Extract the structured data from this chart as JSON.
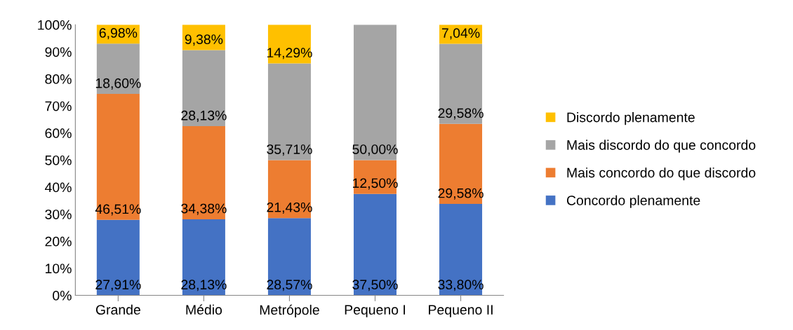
{
  "chart_data": {
    "type": "bar",
    "stacked": true,
    "categories": [
      "Grande",
      "Médio",
      "Metrópole",
      "Pequeno I",
      "Pequeno II"
    ],
    "series": [
      {
        "name": "Concordo plenamente",
        "color": "#4472c4",
        "values": [
          27.91,
          28.13,
          28.57,
          37.5,
          33.8
        ],
        "value_labels": [
          "27,91%",
          "28,13%",
          "28,57%",
          "37,50%",
          "33,80%"
        ]
      },
      {
        "name": "Mais concordo do que discordo",
        "color": "#ed7d31",
        "values": [
          46.51,
          34.38,
          21.43,
          12.5,
          29.58
        ],
        "value_labels": [
          "46,51%",
          "34,38%",
          "21,43%",
          "12,50%",
          "29,58%"
        ]
      },
      {
        "name": "Mais discordo do que concordo",
        "color": "#a5a5a5",
        "values": [
          18.6,
          28.13,
          35.71,
          50.0,
          29.58
        ],
        "value_labels": [
          "18,60%",
          "28,13%",
          "35,71%",
          "50,00%",
          "29,58%"
        ]
      },
      {
        "name": "Discordo plenamente",
        "color": "#ffc000",
        "values": [
          6.98,
          9.38,
          14.29,
          0,
          7.04
        ],
        "value_labels": [
          "6,98%",
          "9,38%",
          "14,29%",
          null,
          "7,04%"
        ]
      }
    ],
    "ylim": [
      0,
      100
    ],
    "yticks": [
      {
        "value": 0,
        "label": "0%"
      },
      {
        "value": 10,
        "label": "10%"
      },
      {
        "value": 20,
        "label": "20%"
      },
      {
        "value": 30,
        "label": "30%"
      },
      {
        "value": 40,
        "label": "40%"
      },
      {
        "value": 50,
        "label": "50%"
      },
      {
        "value": 60,
        "label": "60%"
      },
      {
        "value": 70,
        "label": "70%"
      },
      {
        "value": 80,
        "label": "80%"
      },
      {
        "value": 90,
        "label": "90%"
      },
      {
        "value": 100,
        "label": "100%"
      }
    ],
    "grid": false,
    "legend": "right"
  }
}
